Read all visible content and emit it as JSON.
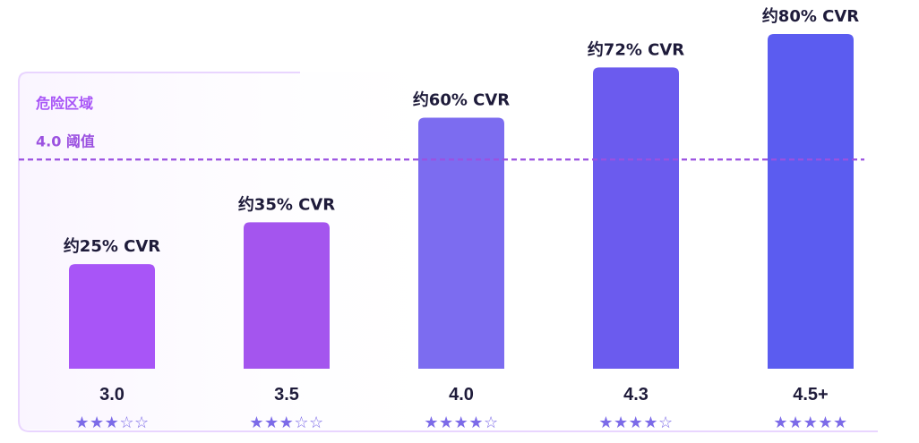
{
  "chart_data": {
    "type": "bar",
    "categories": [
      "3.0",
      "3.5",
      "4.0",
      "4.3",
      "4.5+"
    ],
    "values": [
      25,
      35,
      60,
      72,
      80
    ],
    "value_labels": [
      "约25% CVR",
      "约35% CVR",
      "约60% CVR",
      "约72% CVR",
      "约80% CVR"
    ],
    "stars": [
      "★★★☆☆",
      "★★★☆☆",
      "★★★★☆",
      "★★★★☆",
      "★★★★★"
    ],
    "ylim": [
      0,
      80
    ],
    "threshold": {
      "value": 50,
      "label": "4.0 阈值"
    },
    "danger_zone": {
      "label": "危险区域",
      "covers_categories": [
        "3.0",
        "3.5"
      ]
    },
    "title": "",
    "xlabel": "",
    "ylabel": ""
  },
  "colors": {
    "bars": [
      "#a855f7",
      "#a455ee",
      "#7c6cf0",
      "#6b5bee",
      "#5b5cf0"
    ],
    "threshold_line": "#9b51e0",
    "danger_fill": "#faf5ff",
    "danger_stroke": "#e9d5ff"
  }
}
